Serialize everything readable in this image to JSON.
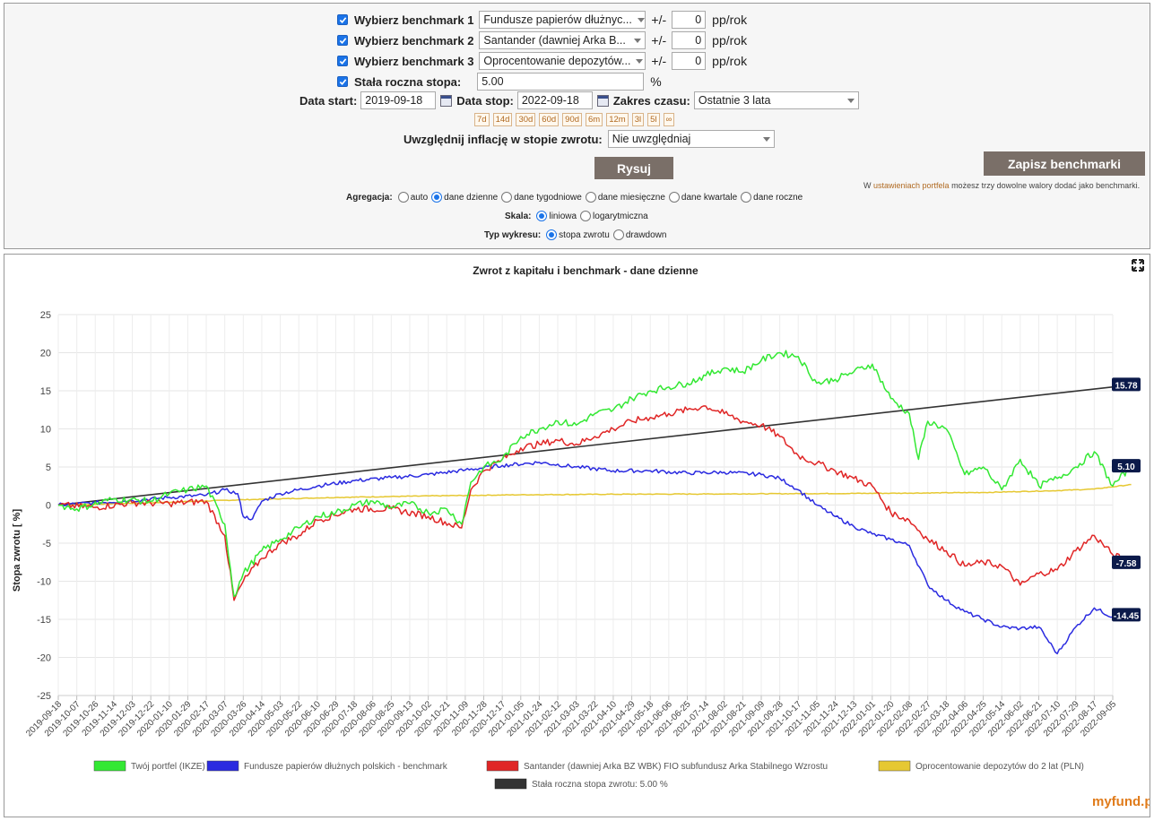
{
  "benchmarks": [
    {
      "label": "Wybierz benchmark 1",
      "value": "Fundusze papierów dłużnyc...",
      "offset": "0",
      "unit": "pp/rok",
      "pm": "+/-"
    },
    {
      "label": "Wybierz benchmark 2",
      "value": "Santander (dawniej Arka B...",
      "offset": "0",
      "unit": "pp/rok",
      "pm": "+/-"
    },
    {
      "label": "Wybierz benchmark 3",
      "value": "Oprocentowanie depozytów...",
      "offset": "0",
      "unit": "pp/rok",
      "pm": "+/-"
    }
  ],
  "rate": {
    "label": "Stała roczna stopa:",
    "value": "5.00",
    "unit": "%"
  },
  "dates": {
    "start_label": "Data start:",
    "start": "2019-09-18",
    "stop_label": "Data stop:",
    "stop": "2022-09-18",
    "range_label": "Zakres czasu:",
    "range_value": "Ostatnie 3 lata"
  },
  "quick_ranges": [
    "7d",
    "14d",
    "30d",
    "60d",
    "90d",
    "6m",
    "12m",
    "3l",
    "5l",
    "∞"
  ],
  "inflation": {
    "label": "Uwzględnij inflację w stopie zwrotu:",
    "value": "Nie uwzględniaj"
  },
  "buttons": {
    "draw": "Rysuj",
    "save": "Zapisz benchmarki"
  },
  "note": {
    "pre": "W ",
    "link": "ustawieniach portfela",
    "post": " możesz trzy dowolne walory dodać jako benchmarki."
  },
  "aggregation": {
    "label": "Agregacja:",
    "options": [
      "auto",
      "dane dzienne",
      "dane tygodniowe",
      "dane miesięczne",
      "dane kwartale",
      "dane roczne"
    ],
    "selected": 1
  },
  "scale": {
    "label": "Skala:",
    "options": [
      "liniowa",
      "logarytmiczna"
    ],
    "selected": 0
  },
  "chart_type": {
    "label": "Typ wykresu:",
    "options": [
      "stopa zwrotu",
      "drawdown"
    ],
    "selected": 0
  },
  "colors": {
    "green": "#33e833",
    "blue": "#2b2be0",
    "red": "#e02626",
    "yellow": "#e6c832",
    "black": "#333333",
    "accent": "#1a73e8",
    "button": "#7a6f68"
  },
  "icons": {
    "expand": "expand-icon",
    "calendar": "calendar-icon",
    "logo": "myfund-logo"
  },
  "logo": "myfund.pl",
  "chart_data": {
    "type": "line",
    "title": "Zwrot z kapitału i benchmark - dane dzienne",
    "ylabel": "Stopa zwrotu [ %]",
    "xlabel": "",
    "ylim": [
      -25,
      25
    ],
    "yticks": [
      25,
      20,
      15,
      10,
      5,
      0,
      -5,
      -10,
      -15,
      -20,
      -25
    ],
    "x_ticks": [
      "2019-09-18",
      "2019-10-07",
      "2019-10-26",
      "2019-11-14",
      "2019-12-03",
      "2019-12-22",
      "2020-01-10",
      "2020-01-29",
      "2020-02-17",
      "2020-03-07",
      "2020-03-26",
      "2020-04-14",
      "2020-05-03",
      "2020-05-22",
      "2020-06-10",
      "2020-06-29",
      "2020-07-18",
      "2020-08-06",
      "2020-08-25",
      "2020-09-13",
      "2020-10-02",
      "2020-10-21",
      "2020-11-09",
      "2020-11-28",
      "2020-12-17",
      "2021-01-05",
      "2021-01-24",
      "2021-02-12",
      "2021-03-03",
      "2021-03-22",
      "2021-04-10",
      "2021-04-29",
      "2021-05-18",
      "2021-06-06",
      "2021-06-25",
      "2021-07-14",
      "2021-08-02",
      "2021-08-21",
      "2021-09-09",
      "2021-09-28",
      "2021-10-17",
      "2021-11-05",
      "2021-11-24",
      "2021-12-13",
      "2022-01-01",
      "2022-01-20",
      "2022-02-08",
      "2022-02-27",
      "2022-03-18",
      "2022-04-06",
      "2022-04-25",
      "2022-05-14",
      "2022-06-02",
      "2022-06-21",
      "2022-07-10",
      "2022-07-29",
      "2022-08-17",
      "2022-09-05"
    ],
    "grid": true,
    "legend_position": "bottom",
    "series": [
      {
        "name": "Twój portfel (IKZE)",
        "color": "#33e833",
        "last": "5.10",
        "points": [
          [
            0,
            0
          ],
          [
            1,
            -0.5
          ],
          [
            3,
            0.8
          ],
          [
            5,
            0.5
          ],
          [
            6,
            1.5
          ],
          [
            7,
            2.0
          ],
          [
            8,
            2.5
          ],
          [
            9,
            -2.5
          ],
          [
            9.5,
            -12
          ],
          [
            10,
            -9
          ],
          [
            11,
            -6
          ],
          [
            12,
            -4.5
          ],
          [
            13,
            -3
          ],
          [
            14,
            -1.5
          ],
          [
            15,
            -1
          ],
          [
            16,
            0
          ],
          [
            17,
            0.5
          ],
          [
            18,
            -0.3
          ],
          [
            19,
            0.2
          ],
          [
            20,
            -1
          ],
          [
            21,
            -0.5
          ],
          [
            21.8,
            -2.5
          ],
          [
            22.3,
            3
          ],
          [
            23,
            5
          ],
          [
            24,
            6
          ],
          [
            25,
            9
          ],
          [
            26,
            10
          ],
          [
            27,
            11
          ],
          [
            28,
            10.5
          ],
          [
            29,
            12
          ],
          [
            30,
            12.5
          ],
          [
            31,
            14
          ],
          [
            32,
            15
          ],
          [
            33,
            15.5
          ],
          [
            34,
            16
          ],
          [
            35,
            17
          ],
          [
            36,
            18
          ],
          [
            37,
            17.5
          ],
          [
            38,
            19
          ],
          [
            39,
            20
          ],
          [
            40,
            19.5
          ],
          [
            41,
            16
          ],
          [
            42,
            16.5
          ],
          [
            43,
            17.5
          ],
          [
            44,
            18.5
          ],
          [
            45,
            14
          ],
          [
            46,
            12
          ],
          [
            46.5,
            6
          ],
          [
            47,
            11
          ],
          [
            48,
            10
          ],
          [
            49,
            4
          ],
          [
            50,
            5
          ],
          [
            51,
            2
          ],
          [
            52,
            6
          ],
          [
            53,
            2.5
          ],
          [
            54,
            3.5
          ],
          [
            55,
            5
          ],
          [
            56,
            7
          ],
          [
            57,
            2.5
          ],
          [
            58,
            5.1
          ]
        ]
      },
      {
        "name": "Fundusze papierów dłużnych polskich - benchmark",
        "color": "#2b2be0",
        "last": "-14.45",
        "points": [
          [
            0,
            0
          ],
          [
            2,
            0.3
          ],
          [
            4,
            0.6
          ],
          [
            6,
            1.0
          ],
          [
            8,
            1.3
          ],
          [
            9,
            2
          ],
          [
            9.7,
            1.5
          ],
          [
            10,
            -1.5
          ],
          [
            10.5,
            -1.8
          ],
          [
            11,
            0.5
          ],
          [
            12,
            1.5
          ],
          [
            14,
            2.5
          ],
          [
            16,
            3.2
          ],
          [
            18,
            3.6
          ],
          [
            20,
            4
          ],
          [
            22,
            4.6
          ],
          [
            24,
            5.2
          ],
          [
            26,
            5.6
          ],
          [
            28,
            5
          ],
          [
            30,
            4.5
          ],
          [
            32,
            4.5
          ],
          [
            34,
            4.2
          ],
          [
            36,
            4.3
          ],
          [
            38,
            4
          ],
          [
            39,
            3.5
          ],
          [
            40,
            2
          ],
          [
            41,
            0
          ],
          [
            42,
            -1.5
          ],
          [
            43,
            -2.8
          ],
          [
            44,
            -3.8
          ],
          [
            45,
            -4.5
          ],
          [
            46,
            -5.3
          ],
          [
            47,
            -10.5
          ],
          [
            48,
            -12.5
          ],
          [
            49,
            -14
          ],
          [
            50,
            -15
          ],
          [
            51,
            -16
          ],
          [
            52,
            -16.2
          ],
          [
            53,
            -16
          ],
          [
            54,
            -19.5
          ],
          [
            55,
            -16
          ],
          [
            56,
            -13.5
          ],
          [
            57,
            -14.7
          ],
          [
            58,
            -14.45
          ]
        ]
      },
      {
        "name": "Santander (dawniej Arka BZ WBK) FIO subfundusz Arka Stabilnego Wzrostu",
        "color": "#e02626",
        "last": "-7.58",
        "points": [
          [
            0,
            0
          ],
          [
            2,
            -0.3
          ],
          [
            4,
            0.3
          ],
          [
            6,
            0.2
          ],
          [
            8,
            0.5
          ],
          [
            9,
            -4
          ],
          [
            9.5,
            -12.5
          ],
          [
            10,
            -10
          ],
          [
            11,
            -7
          ],
          [
            12,
            -5
          ],
          [
            13,
            -4
          ],
          [
            14,
            -2
          ],
          [
            16,
            -0.5
          ],
          [
            18,
            -0.5
          ],
          [
            20,
            -1.5
          ],
          [
            21.8,
            -3
          ],
          [
            22.3,
            2
          ],
          [
            23,
            4.5
          ],
          [
            24,
            6
          ],
          [
            25,
            7.5
          ],
          [
            26,
            8
          ],
          [
            27,
            8.5
          ],
          [
            28,
            8
          ],
          [
            29,
            9
          ],
          [
            30,
            10
          ],
          [
            31,
            11
          ],
          [
            32,
            11.5
          ],
          [
            33,
            12
          ],
          [
            34,
            12.5
          ],
          [
            35,
            13
          ],
          [
            36,
            12
          ],
          [
            37,
            11
          ],
          [
            38,
            10.5
          ],
          [
            39,
            9
          ],
          [
            40,
            6.5
          ],
          [
            41,
            5.5
          ],
          [
            42,
            4.5
          ],
          [
            43,
            3.5
          ],
          [
            44,
            2.5
          ],
          [
            45,
            -1
          ],
          [
            46,
            -2
          ],
          [
            47,
            -4.5
          ],
          [
            48,
            -6
          ],
          [
            49,
            -8
          ],
          [
            50,
            -7.5
          ],
          [
            51,
            -8
          ],
          [
            52,
            -10.5
          ],
          [
            53,
            -9
          ],
          [
            54,
            -8.5
          ],
          [
            55,
            -6
          ],
          [
            56,
            -4
          ],
          [
            57,
            -6.5
          ],
          [
            58,
            -7.58
          ]
        ]
      },
      {
        "name": "Oprocentowanie depozytów do 2 lat (PLN)",
        "color": "#e6c832",
        "last": "",
        "points": [
          [
            0,
            0
          ],
          [
            5,
            0.3
          ],
          [
            10,
            0.7
          ],
          [
            15,
            1.0
          ],
          [
            20,
            1.2
          ],
          [
            25,
            1.35
          ],
          [
            30,
            1.42
          ],
          [
            35,
            1.45
          ],
          [
            40,
            1.5
          ],
          [
            45,
            1.55
          ],
          [
            50,
            1.65
          ],
          [
            54,
            1.9
          ],
          [
            56,
            2.1
          ],
          [
            58,
            2.7
          ]
        ]
      },
      {
        "name": "Stała roczna stopa zwrotu: 5.00 %",
        "color": "#333333",
        "last": "15.78",
        "points": [
          [
            0,
            0
          ],
          [
            58,
            15.78
          ]
        ]
      }
    ]
  }
}
